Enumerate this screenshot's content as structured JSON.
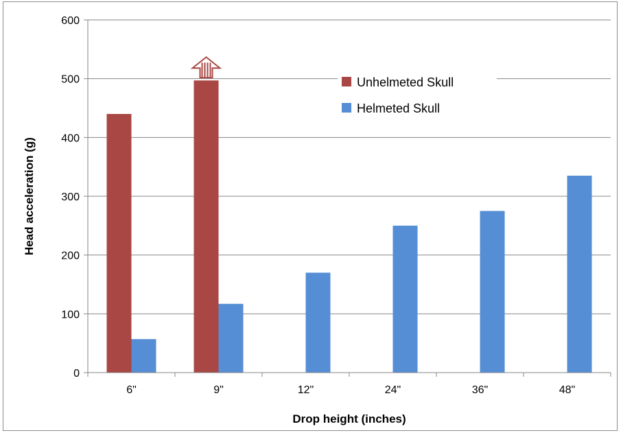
{
  "chart_data": {
    "type": "bar",
    "categories": [
      "6\"",
      "9\"",
      "12\"",
      "24\"",
      "36\"",
      "48\""
    ],
    "series": [
      {
        "name": "Unhelmeted Skull",
        "color": "#a84743",
        "values": [
          440,
          497,
          null,
          null,
          null,
          null
        ]
      },
      {
        "name": "Helmeted Skull",
        "color": "#558ed5",
        "values": [
          57,
          117,
          170,
          250,
          275,
          335
        ]
      }
    ],
    "xlabel": "Drop height (inches)",
    "ylabel": "Head acceleration (g)",
    "ylim": [
      0,
      600
    ],
    "yticks": [
      0,
      100,
      200,
      300,
      400,
      500,
      600
    ],
    "grid": true,
    "legend_position": "top-right",
    "annotations": [
      {
        "type": "up-arrow-icon",
        "series": "Unhelmeted Skull",
        "category": "9\"",
        "meaning": "value exceeds measurement"
      }
    ]
  }
}
